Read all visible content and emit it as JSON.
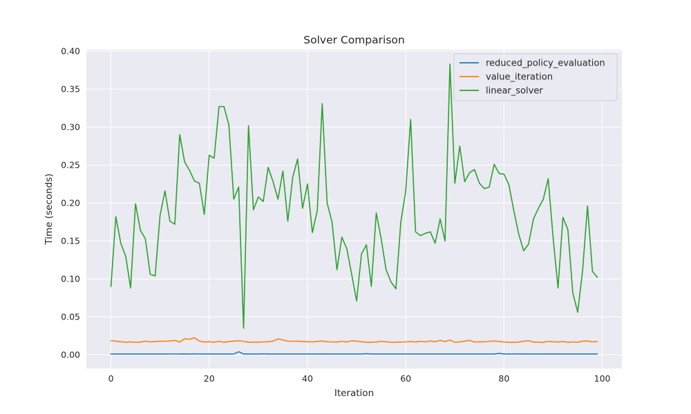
{
  "chart_data": {
    "type": "line",
    "title": "Solver Comparison",
    "xlabel": "Iteration",
    "ylabel": "Time (seconds)",
    "xlim": [
      -5,
      104
    ],
    "ylim": [
      -0.018,
      0.402
    ],
    "xticks": [
      0,
      20,
      40,
      60,
      80,
      100
    ],
    "yticks": [
      0.0,
      0.05,
      0.1,
      0.15,
      0.2,
      0.25,
      0.3,
      0.35,
      0.4
    ],
    "grid": true,
    "legend_position": "top-right",
    "background": "#eaeaf2",
    "series": [
      {
        "name": "reduced_policy_evaluation",
        "color": "#1f77b4",
        "values": [
          0.001,
          0.001,
          0.001,
          0.001,
          0.001,
          0.001,
          0.001,
          0.001,
          0.001,
          0.001,
          0.001,
          0.001,
          0.0011,
          0.0011,
          0.001,
          0.001,
          0.001,
          0.0012,
          0.0011,
          0.001,
          0.001,
          0.001,
          0.001,
          0.001,
          0.001,
          0.0011,
          0.004,
          0.001,
          0.001,
          0.001,
          0.001,
          0.0012,
          0.001,
          0.001,
          0.001,
          0.001,
          0.001,
          0.001,
          0.001,
          0.001,
          0.001,
          0.0011,
          0.001,
          0.001,
          0.001,
          0.001,
          0.001,
          0.001,
          0.001,
          0.001,
          0.001,
          0.001,
          0.0015,
          0.001,
          0.001,
          0.001,
          0.001,
          0.001,
          0.001,
          0.001,
          0.001,
          0.001,
          0.001,
          0.001,
          0.001,
          0.001,
          0.001,
          0.001,
          0.001,
          0.001,
          0.001,
          0.001,
          0.001,
          0.001,
          0.001,
          0.001,
          0.001,
          0.001,
          0.001,
          0.0018,
          0.001,
          0.001,
          0.0012,
          0.001,
          0.001,
          0.001,
          0.001,
          0.001,
          0.001,
          0.001,
          0.001,
          0.001,
          0.001,
          0.001,
          0.001,
          0.001,
          0.001,
          0.001,
          0.001,
          0.001
        ]
      },
      {
        "name": "value_iteration",
        "color": "#ff7f0e",
        "values": [
          0.0185,
          0.018,
          0.0172,
          0.0166,
          0.017,
          0.0165,
          0.0168,
          0.018,
          0.017,
          0.0175,
          0.018,
          0.0178,
          0.0182,
          0.019,
          0.0168,
          0.021,
          0.0205,
          0.0225,
          0.018,
          0.0168,
          0.0172,
          0.0166,
          0.0178,
          0.0165,
          0.0175,
          0.018,
          0.0185,
          0.0178,
          0.0165,
          0.0168,
          0.0166,
          0.017,
          0.0172,
          0.018,
          0.021,
          0.0195,
          0.018,
          0.0178,
          0.018,
          0.0175,
          0.0172,
          0.017,
          0.0176,
          0.0182,
          0.0172,
          0.017,
          0.0168,
          0.0178,
          0.0168,
          0.0185,
          0.018,
          0.0172,
          0.0165,
          0.0166,
          0.0168,
          0.0178,
          0.0172,
          0.0166,
          0.0165,
          0.0168,
          0.017,
          0.0175,
          0.0168,
          0.0178,
          0.017,
          0.0182,
          0.0172,
          0.019,
          0.0175,
          0.0195,
          0.0165,
          0.017,
          0.018,
          0.019,
          0.0168,
          0.0172,
          0.017,
          0.0178,
          0.0182,
          0.0175,
          0.0168,
          0.0166,
          0.0165,
          0.0168,
          0.018,
          0.0185,
          0.0168,
          0.0166,
          0.0165,
          0.0178,
          0.0172,
          0.0168,
          0.0175,
          0.0165,
          0.017,
          0.0165,
          0.018,
          0.0182,
          0.017,
          0.0175
        ]
      },
      {
        "name": "linear_solver",
        "color": "#2ca02c",
        "values": [
          0.09,
          0.182,
          0.147,
          0.13,
          0.088,
          0.199,
          0.164,
          0.153,
          0.106,
          0.104,
          0.184,
          0.216,
          0.176,
          0.172,
          0.29,
          0.254,
          0.243,
          0.229,
          0.226,
          0.185,
          0.263,
          0.259,
          0.327,
          0.327,
          0.303,
          0.205,
          0.221,
          0.035,
          0.302,
          0.191,
          0.208,
          0.202,
          0.247,
          0.228,
          0.205,
          0.242,
          0.176,
          0.234,
          0.258,
          0.193,
          0.225,
          0.161,
          0.19,
          0.331,
          0.2,
          0.175,
          0.112,
          0.155,
          0.14,
          0.106,
          0.071,
          0.133,
          0.145,
          0.09,
          0.187,
          0.153,
          0.112,
          0.096,
          0.087,
          0.175,
          0.216,
          0.31,
          0.162,
          0.157,
          0.16,
          0.162,
          0.147,
          0.179,
          0.15,
          0.383,
          0.226,
          0.275,
          0.228,
          0.24,
          0.244,
          0.226,
          0.219,
          0.221,
          0.251,
          0.239,
          0.238,
          0.224,
          0.19,
          0.159,
          0.137,
          0.146,
          0.179,
          0.193,
          0.205,
          0.232,
          0.154,
          0.088,
          0.181,
          0.165,
          0.082,
          0.056,
          0.111,
          0.196,
          0.11,
          0.102
        ]
      }
    ]
  }
}
